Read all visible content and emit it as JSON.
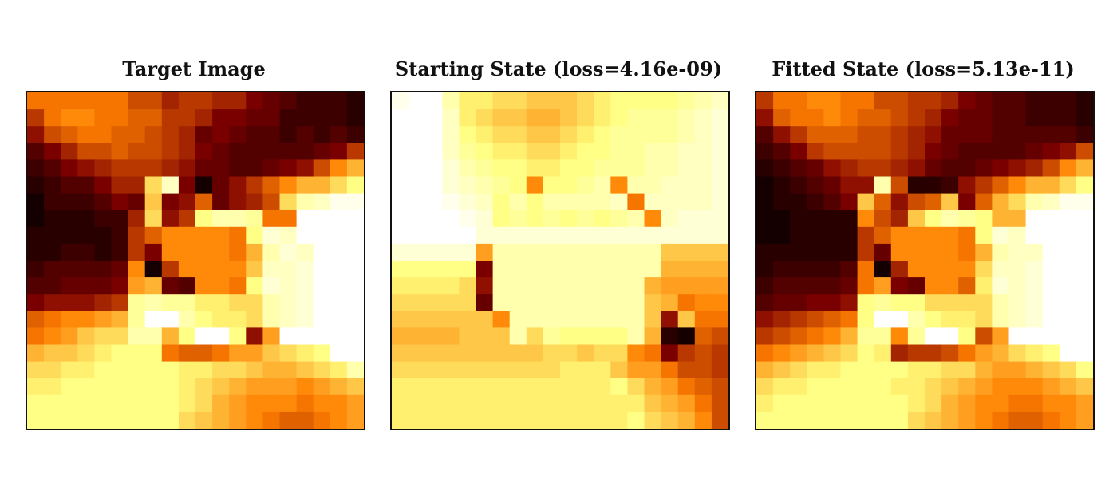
{
  "figure": {
    "colormap": "afmhot",
    "panels": [
      {
        "title": "Target Image"
      },
      {
        "title": "Starting State (loss=4.16e-09)"
      },
      {
        "title": "Fitted State (loss=5.13e-11)"
      }
    ]
  },
  "chart_data": [
    {
      "type": "heatmap",
      "title": "Target Image",
      "rows": 20,
      "cols": 20,
      "colormap": "afmhot",
      "values": [
        "MMMMMMKKIJJIIGFEDDDC",
        "JMNNMMLLJJIGGFFDDDDC",
        "HKLMMLLKJIFGFEEDEDED",
        "EGIKKLKKJIGFEEEEEFGJ",
        "DEGHIJJJIHFFEEFGHKNP",
        "CDEEGIIRWGBFHJLNPPRT",
        "BDDDEGFQGHLFHIKRVWYY",
        "BCCCDDIRHJTVVUMMZZZZ",
        "CCCCCDJLNNNNMTXWZZZZ",
        "CCDDCDJGNNNNMPVXWZZZ",
        "DEEEEFNBJNNNNQWWXZZZ",
        "EEFFFGOPFENNMTXWXZZZ",
        "GHHHIJUVUUSSRRVWXZZZ",
        "LMNNOPUZZVTSSRVWXZZZ",
        "MNOQRRVVPTZZTHOZZZZZ",
        "PQQRSTTTMLLMOOQRSTZZ",
        "RRSSTTTTTSSRRQPPQRSV",
        "SSTTTTTTTSRQPOOONOPQ",
        "TTTTTTTTTSRPONNNMNNO",
        "TTTTTTTTTRQPONMLLMNO"
      ]
    },
    {
      "type": "heatmap",
      "title": "Starting State (loss=4.16e-09)",
      "rows": 20,
      "cols": 20,
      "colormap": "afmhot",
      "values": [
        "YZZVSSRRQQQRSTTTTUVW",
        "ZZZWSRQQPPQRSTUUUVWX",
        "ZZZWTSRRQQRSTUUUUVWX",
        "ZZZWUTSSRRSTTUUVVWWX",
        "ZZZXVUTTSSTTUUUVVWWX",
        "ZZZXWVUTNTTUVNVVWWWX",
        "ZZZYXWTVTVVVVWMWWWWX",
        "ZZZZYXTUTUTUTUVNWXXX",
        "ZZZZZXXXXXXXXXXXXXXX",
        "XXXXXOVVVVVVVVVVQQQQ",
        "TTTTTGVVVVVVVVVVPPPP",
        "SSSSRHVVVVVVVVVPOOOO",
        "RRRRRFVVVVVVVVVQPMNN",
        "QQQQQQNVVVVVVVVQHQMM",
        "PPPPQQQVRUTTTTVPCBLK",
        "QQQQQQQQQRRQRRNMGJKJ",
        "RRRRRRRRRRSSSQOOMKKJ",
        "SSSSSSSSSSSSSTRPOMLK",
        "SSSSSSSSSSSSSSSQPOMK",
        "SSSSSSSSSSSSSSTRQPNK"
      ]
    },
    {
      "type": "heatmap",
      "title": "Fitted State (loss=5.13e-11)",
      "rows": 20,
      "cols": 20,
      "colormap": "afmhot",
      "values": [
        "JMMNNMMKKJJIGFEEDDDC",
        "HLMMNMLLKJIGFFEEDDDC",
        "EHJLLLKKJIHFFFEEEEED",
        "DEGJKKKKJIGFEEEEFGHK",
        "CDEFHIJJIHFEEFGHIKNP",
        "BCDEFHHVKCCDHJLNPPRT",
        "BCCDEGQLHKLQGLPRVWYY",
        "BBCCCCNKIQTVUTPPZZZZ",
        "BBCCCCJLNNNNMTXWZZZZ",
        "CCCCCCJFNNNNMPVWWZZZ",
        "CDDDDEMBINNNNRWWXZZZ",
        "DEEEEFMOGFNNLSXWXZZZ",
        "EFFGGHTUTTRRRRVWXZZZ",
        "HIJKLMTZZVTSSRVWXZZZ",
        "JKLMNPUUNUZZTKOZZZZZ",
        "MNOPQRTSIJJKMOPRSTZZ",
        "PQRSSTTTTSSRRPOOPQRT",
        "RSSTTTTTSSRQPONNNOPQ",
        "STTTTTTTTSRPONNMMNNO",
        "TTTTTTTTTRQPONMLLMNO"
      ]
    }
  ]
}
